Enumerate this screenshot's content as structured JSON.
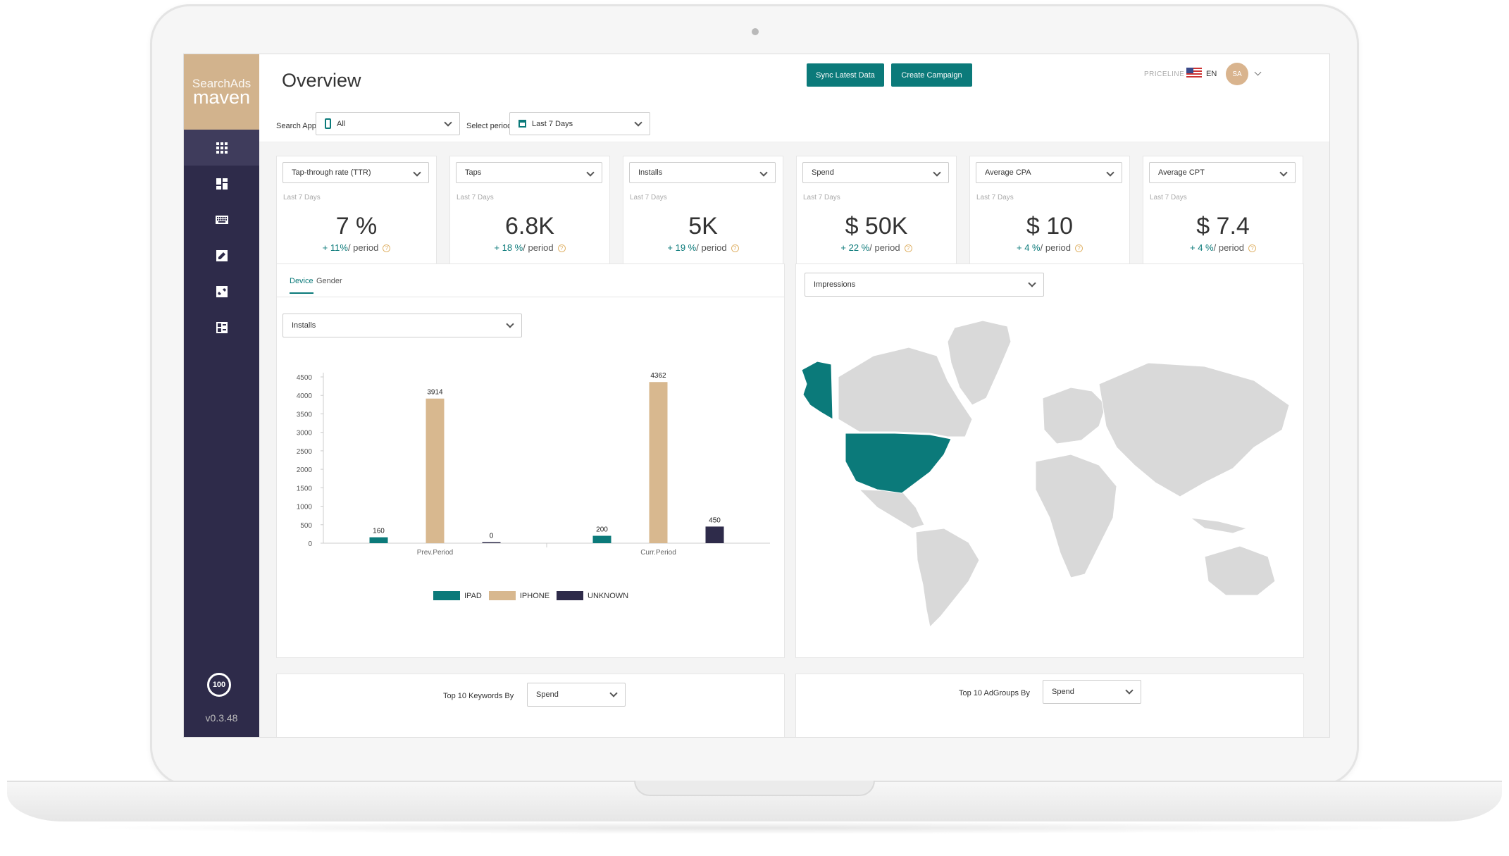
{
  "sidebar": {
    "brand_top": "SearchAds",
    "brand_bottom": "maven",
    "badge": "100",
    "version": "v0.3.48"
  },
  "header": {
    "title": "Overview",
    "search_app_label": "Search App",
    "search_app_value": "All",
    "period_label": "Select period",
    "period_value": "Last 7 Days",
    "sync_button": "Sync Latest Data",
    "create_button": "Create Campaign",
    "org": "PRICELINE",
    "language": "EN",
    "avatar": "SA"
  },
  "kpis": [
    {
      "metric": "Tap-through rate (TTR)",
      "period": "Last 7 Days",
      "value": "7 %",
      "change": "+ 11%",
      "suffix": "/ period"
    },
    {
      "metric": "Taps",
      "period": "Last 7 Days",
      "value": "6.8K",
      "change": "+ 18 %",
      "suffix": "/ period"
    },
    {
      "metric": "Installs",
      "period": "Last 7 Days",
      "value": "5K",
      "change": "+ 19 %",
      "suffix": "/ period"
    },
    {
      "metric": "Spend",
      "period": "Last 7 Days",
      "value": "$ 50K",
      "change": "+ 22 %",
      "suffix": "/ period"
    },
    {
      "metric": "Average CPA",
      "period": "Last 7 Days",
      "value": "$ 10",
      "change": "+ 4 %",
      "suffix": "/ period"
    },
    {
      "metric": "Average CPT",
      "period": "Last 7 Days",
      "value": "$ 7.4",
      "change": "+ 4 %",
      "suffix": "/ period"
    }
  ],
  "device_panel": {
    "tabs": [
      "Device",
      "Gender"
    ],
    "metric_select": "Installs"
  },
  "map_panel": {
    "metric_select": "Impressions",
    "highlight_color": "#0b7a7a",
    "land_color": "#d9d9d9"
  },
  "bottom": {
    "keywords_label": "Top 10 Keywords By",
    "keywords_select": "Spend",
    "adgroups_label": "Top 10 AdGroups By",
    "adgroups_select": "Spend"
  },
  "colors": {
    "accent": "#0b7a7a",
    "tan": "#d2b38d",
    "navy": "#2e2b4a"
  },
  "chart_data": {
    "type": "bar",
    "categories": [
      "Prev.Period",
      "Curr.Period"
    ],
    "series": [
      {
        "name": "IPAD",
        "color": "#0b7a7a",
        "values": [
          160,
          200
        ]
      },
      {
        "name": "IPHONE",
        "color": "#d8b88f",
        "values": [
          3914,
          4362
        ]
      },
      {
        "name": "UNKNOWN",
        "color": "#2e2b4a",
        "values": [
          0,
          450
        ]
      }
    ],
    "yticks": [
      0,
      500,
      1000,
      1500,
      2000,
      2500,
      3000,
      3500,
      4000,
      4500
    ],
    "ylim": [
      0,
      4500
    ],
    "legend": "bottom"
  }
}
